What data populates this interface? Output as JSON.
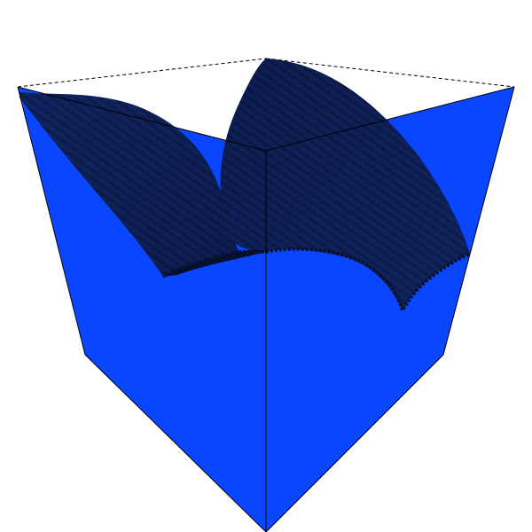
{
  "scene": {
    "description_visible": "",
    "colors": {
      "background": "#ffffff",
      "side_fill": "#0a46ff",
      "side_fill_shade": "#0840f0",
      "top_surface_dark": "#0b1a4a",
      "top_surface_mid": "#10245f",
      "top_surface_edge": "#06102e",
      "box_edge": "#000000"
    },
    "box": {
      "front_edges": "solid",
      "back_edges": "dashed"
    },
    "surface": {
      "texture": "ridged",
      "lobes": 2
    }
  }
}
